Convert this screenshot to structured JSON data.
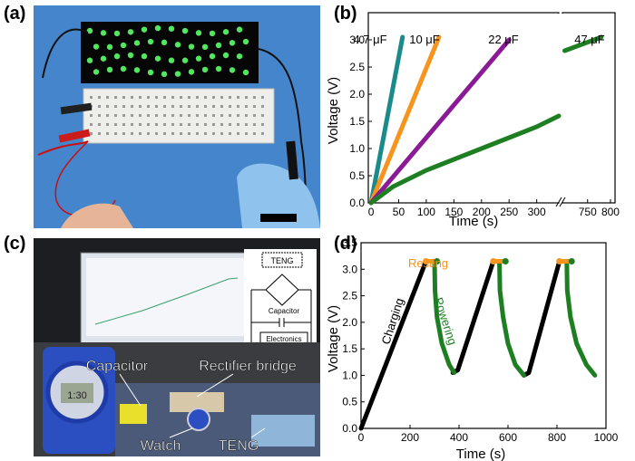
{
  "panels": {
    "a": {
      "label": "(a)"
    },
    "b": {
      "label": "(b)"
    },
    "c": {
      "label": "(c)",
      "annotations": {
        "teng_box": "TENG",
        "capacitor_box": "Capacitor",
        "electronics_box": "Electronics",
        "capacitor": "Capacitor",
        "rectifier": "Rectifier bridge",
        "watch": "Watch",
        "teng": "TENG",
        "watch_display": "1:30"
      }
    },
    "d": {
      "label": "(d)"
    }
  },
  "chart_data": [
    {
      "panel": "b",
      "type": "line",
      "xlabel": "Time (s)",
      "ylabel": "Voltage (V)",
      "ylim": [
        0,
        3.5
      ],
      "yticks": [
        0.0,
        0.5,
        1.0,
        1.5,
        2.0,
        2.5,
        3.0
      ],
      "xticks_left": [
        0,
        50,
        100,
        150,
        200,
        250,
        300
      ],
      "xticks_right": [
        750,
        800
      ],
      "x_axis_break": true,
      "series": [
        {
          "name": "4.7 μF",
          "color": "#1a8a8a",
          "x": [
            0,
            57
          ],
          "y": [
            0,
            3.05
          ]
        },
        {
          "name": "10 μF",
          "color": "#f7941d",
          "x": [
            0,
            123
          ],
          "y": [
            0,
            3.05
          ]
        },
        {
          "name": "22 μF",
          "color": "#8b1a96",
          "x": [
            0,
            250
          ],
          "y": [
            0,
            3.0
          ]
        },
        {
          "name": "47 μF",
          "color": "#1e7f22",
          "x": [
            0,
            40,
            100,
            150,
            200,
            250,
            300,
            340,
            700,
            780
          ],
          "y": [
            0,
            0.3,
            0.6,
            0.8,
            1.0,
            1.2,
            1.4,
            1.6,
            2.8,
            3.05
          ]
        }
      ]
    },
    {
      "panel": "d",
      "type": "line",
      "xlabel": "Time (s)",
      "ylabel": "Voltage (V)",
      "xlim": [
        0,
        1000
      ],
      "ylim": [
        0,
        3.5
      ],
      "xticks": [
        0,
        200,
        400,
        600,
        800,
        1000
      ],
      "yticks": [
        0.0,
        0.5,
        1.0,
        1.5,
        2.0,
        2.5,
        3.0,
        3.5
      ],
      "annotations": {
        "charging": "Charging",
        "resting": "Resting",
        "powering": "Powering"
      },
      "series": [
        {
          "name": "Charging",
          "color": "#000000",
          "segments": [
            {
              "x": [
                0,
                265
              ],
              "y": [
                0,
                3.15
              ]
            },
            {
              "x": [
                375,
                395,
                540
              ],
              "y": [
                1.05,
                1.1,
                3.15
              ]
            },
            {
              "x": [
                665,
                685,
                810
              ],
              "y": [
                1.0,
                1.05,
                3.15
              ]
            }
          ]
        },
        {
          "name": "Resting",
          "color": "#f7941d",
          "segments": [
            {
              "x": [
                265,
                300
              ],
              "y": [
                3.15,
                3.15
              ]
            },
            {
              "x": [
                540,
                575
              ],
              "y": [
                3.15,
                3.15
              ]
            },
            {
              "x": [
                810,
                845
              ],
              "y": [
                3.15,
                3.15
              ]
            }
          ]
        },
        {
          "name": "Powering",
          "color": "#1e7f22",
          "segments": [
            {
              "x": [
                300,
                310
              ],
              "y": [
                3.15,
                3.15
              ]
            },
            {
              "x": [
                575,
                590
              ],
              "y": [
                3.15,
                3.15
              ]
            },
            {
              "x": [
                845,
                860
              ],
              "y": [
                3.15,
                3.15
              ]
            },
            {
              "x": [
                300,
                302,
                310,
                330,
                360,
                380
              ],
              "y": [
                3.15,
                2.6,
                2.1,
                1.6,
                1.2,
                1.05
              ]
            },
            {
              "x": [
                565,
                567,
                580,
                600,
                630,
                665
              ],
              "y": [
                3.15,
                2.6,
                2.1,
                1.6,
                1.2,
                1.0
              ]
            },
            {
              "x": [
                840,
                842,
                855,
                880,
                920,
                955
              ],
              "y": [
                3.15,
                2.6,
                2.1,
                1.6,
                1.2,
                1.0
              ]
            }
          ]
        }
      ]
    }
  ]
}
